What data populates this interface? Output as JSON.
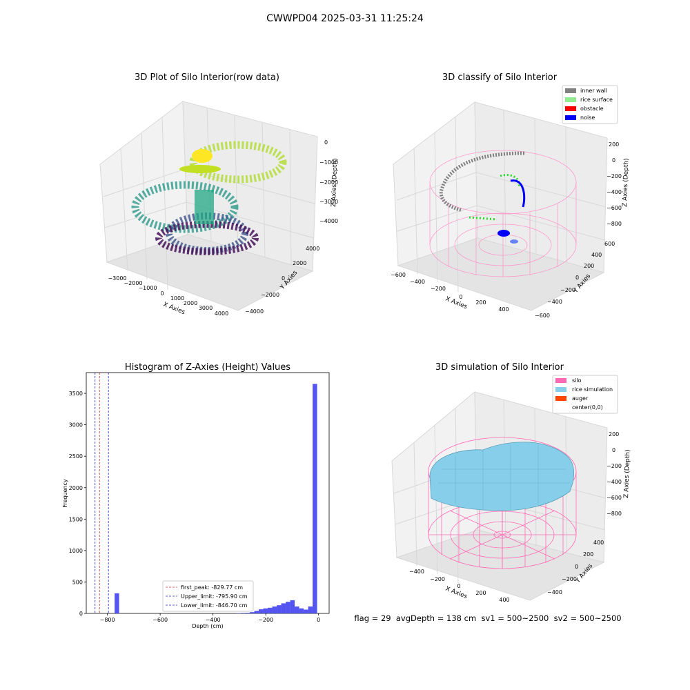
{
  "page_title": "CWWPD04 2025-03-31 11:25:24",
  "footer_text": "flag = 29  avgDepth = 138 cm  sv1 = 500~2500  sv2 = 500~2500",
  "colors": {
    "hist_bar": "#4b4bf0",
    "first_peak": "#cc3333",
    "limit": "#2222cc",
    "inner_wall": "#808080",
    "rice_surface": "#90ee90",
    "obstacle": "#ff0000",
    "noise": "#0000ff",
    "silo": "#ff69b4",
    "rice_simulation": "#87ceeb",
    "auger": "#ff4500"
  },
  "chart_data": [
    {
      "type": "scatter",
      "title": "3D Plot of Silo Interior(row data)",
      "projection": "3d",
      "xlabel": "X Axies",
      "ylabel": "Y Axies",
      "zlabel": "Z Axies (Depth)",
      "x_ticks": [
        "−3000",
        "−2000",
        "−1000",
        "0",
        "1000",
        "2000",
        "3000",
        "4000"
      ],
      "y_ticks": [
        "−4000",
        "−2000",
        "0",
        "2000",
        "4000"
      ],
      "z_ticks": [
        "0",
        "−1000",
        "−2000",
        "−3000",
        "−4000"
      ],
      "colormap": "viridis by depth",
      "grid": true
    },
    {
      "type": "scatter",
      "title": "3D classify of Silo Interior",
      "projection": "3d",
      "xlabel": "X Axies",
      "ylabel": "Y Axies",
      "zlabel": "Z Axies (Depth)",
      "x_ticks": [
        "−600",
        "−400",
        "−200",
        "0",
        "200",
        "400"
      ],
      "y_ticks": [
        "−600",
        "−400",
        "−200",
        "0",
        "200",
        "400",
        "600"
      ],
      "z_ticks": [
        "200",
        "0",
        "−200",
        "−400",
        "−600",
        "−800"
      ],
      "legend": [
        "inner wall",
        "rice surface",
        "obstacle",
        "noise"
      ],
      "legend_position": "top-right",
      "grid": true
    },
    {
      "type": "bar",
      "title": "Histogram of Z-Axies (Height) Values",
      "xlabel": "Depth (cm)",
      "ylabel": "Frequency",
      "xlim": [
        -880,
        40
      ],
      "ylim": [
        0,
        3830
      ],
      "x_ticks": [
        -800,
        -600,
        -400,
        -200,
        0
      ],
      "x_tick_labels": [
        "−800",
        "−600",
        "−400",
        "−200",
        "0"
      ],
      "y_ticks": [
        0,
        500,
        1000,
        1500,
        2000,
        2500,
        3000,
        3500
      ],
      "bin_width": 17,
      "bins": [
        {
          "x": -764,
          "count": 320
        },
        {
          "x": -303,
          "count": 5
        },
        {
          "x": -286,
          "count": 8
        },
        {
          "x": -269,
          "count": 10
        },
        {
          "x": -252,
          "count": 20
        },
        {
          "x": -235,
          "count": 40
        },
        {
          "x": -218,
          "count": 65
        },
        {
          "x": -201,
          "count": 80
        },
        {
          "x": -184,
          "count": 90
        },
        {
          "x": -167,
          "count": 110
        },
        {
          "x": -150,
          "count": 130
        },
        {
          "x": -133,
          "count": 160
        },
        {
          "x": -116,
          "count": 185
        },
        {
          "x": -99,
          "count": 210
        },
        {
          "x": -82,
          "count": 110
        },
        {
          "x": -65,
          "count": 80
        },
        {
          "x": -48,
          "count": 60
        },
        {
          "x": -31,
          "count": 110
        },
        {
          "x": -14,
          "count": 3650
        }
      ],
      "reference_lines": [
        {
          "name": "first_peak: -829.77 cm",
          "value": -829.77,
          "style": "red dashed"
        },
        {
          "name": "Upper_limit: -795.90 cm",
          "value": -795.9,
          "style": "blue dashed"
        },
        {
          "name": "Lower_limit: -846.70 cm",
          "value": -846.7,
          "style": "blue dashed"
        }
      ],
      "legend_position": "lower center"
    },
    {
      "type": "area",
      "title": "3D simulation of Silo Interior",
      "projection": "3d",
      "xlabel": "X Axies",
      "ylabel": "Y Axies",
      "zlabel": "Z Axies (Depth)",
      "x_ticks": [
        "−400",
        "−200",
        "0",
        "200",
        "400"
      ],
      "y_ticks": [
        "−400",
        "−200",
        "0",
        "200",
        "400"
      ],
      "z_ticks": [
        "200",
        "0",
        "−200",
        "−400",
        "−600",
        "−800"
      ],
      "legend": [
        "silo",
        "rice simulation",
        "auger",
        "center(0,0)"
      ],
      "legend_position": "top-right",
      "grid": true
    }
  ]
}
